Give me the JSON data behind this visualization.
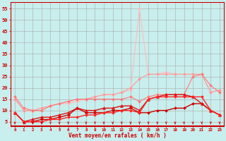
{
  "background_color": "#c8eeed",
  "grid_color": "#aaaaaa",
  "xlabel": "Vent moyen/en rafales ( km/h )",
  "xlabel_color": "#cc0000",
  "tick_color": "#cc0000",
  "x_ticks": [
    0,
    1,
    2,
    3,
    4,
    5,
    6,
    7,
    8,
    9,
    10,
    11,
    12,
    13,
    14,
    15,
    16,
    17,
    18,
    19,
    20,
    21,
    22,
    23
  ],
  "ylim": [
    3,
    58
  ],
  "yticks": [
    5,
    10,
    15,
    20,
    25,
    30,
    35,
    40,
    45,
    50,
    55
  ],
  "xlim": [
    -0.5,
    23.5
  ],
  "series": [
    {
      "x": [
        0,
        1,
        2,
        3,
        4,
        5,
        6,
        7,
        8,
        9,
        10,
        11,
        12,
        13,
        14,
        15,
        16,
        17,
        18,
        19,
        20,
        21,
        22,
        23
      ],
      "y": [
        15,
        10,
        10,
        11,
        12,
        13,
        13,
        14,
        15,
        16,
        17,
        17,
        18,
        19,
        55,
        26,
        26,
        27,
        26,
        26,
        26,
        26,
        18,
        19
      ],
      "color": "#ffbbbb",
      "marker": "D",
      "markersize": 2,
      "linewidth": 0.8,
      "alpha": 1.0
    },
    {
      "x": [
        0,
        1,
        2,
        3,
        4,
        5,
        6,
        7,
        8,
        9,
        10,
        11,
        12,
        13,
        14,
        15,
        16,
        17,
        18,
        19,
        20,
        21,
        22,
        23
      ],
      "y": [
        15,
        10,
        10,
        11,
        12,
        13,
        14,
        15,
        15,
        16,
        17,
        17,
        18,
        20,
        24,
        26,
        26,
        26,
        26,
        26,
        26,
        26,
        18,
        19
      ],
      "color": "#ff9999",
      "marker": "D",
      "markersize": 2,
      "linewidth": 0.8,
      "alpha": 1.0
    },
    {
      "x": [
        0,
        1,
        2,
        3,
        4,
        5,
        6,
        7,
        8,
        9,
        10,
        11,
        12,
        13,
        14,
        15,
        16,
        17,
        18,
        19,
        20,
        21,
        22,
        23
      ],
      "y": [
        16,
        11,
        10,
        10,
        12,
        13,
        14,
        15,
        15,
        15,
        15,
        15,
        15,
        16,
        14,
        16,
        17,
        17,
        17,
        17,
        25,
        26,
        21,
        18
      ],
      "color": "#ff7777",
      "marker": "D",
      "markersize": 2,
      "linewidth": 0.8,
      "alpha": 1.0
    },
    {
      "x": [
        0,
        1,
        2,
        3,
        4,
        5,
        6,
        7,
        8,
        9,
        10,
        11,
        12,
        13,
        14,
        15,
        16,
        17,
        18,
        19,
        20,
        21,
        22,
        23
      ],
      "y": [
        9,
        5,
        5,
        6,
        6,
        7,
        8,
        11,
        9,
        9,
        9,
        10,
        10,
        11,
        9,
        9,
        10,
        10,
        11,
        11,
        13,
        13,
        10,
        8
      ],
      "color": "#cc0000",
      "marker": "D",
      "markersize": 2,
      "linewidth": 1.0,
      "alpha": 1.0
    },
    {
      "x": [
        0,
        1,
        2,
        3,
        4,
        5,
        6,
        7,
        8,
        9,
        10,
        11,
        12,
        13,
        14,
        15,
        16,
        17,
        18,
        19,
        20,
        21,
        22,
        23
      ],
      "y": [
        9,
        5,
        6,
        7,
        7,
        8,
        9,
        11,
        10,
        10,
        11,
        11,
        12,
        12,
        10,
        15,
        16,
        17,
        17,
        17,
        16,
        13,
        10,
        8
      ],
      "color": "#dd1111",
      "marker": "^",
      "markersize": 3,
      "linewidth": 1.0,
      "alpha": 1.0
    },
    {
      "x": [
        0,
        1,
        2,
        3,
        4,
        5,
        6,
        7,
        8,
        9,
        10,
        11,
        12,
        13,
        14,
        15,
        16,
        17,
        18,
        19,
        20,
        21,
        22,
        23
      ],
      "y": [
        9,
        5,
        5,
        5,
        6,
        6,
        7,
        7,
        8,
        8,
        9,
        9,
        10,
        10,
        9,
        15,
        16,
        16,
        16,
        16,
        16,
        16,
        10,
        8
      ],
      "color": "#ff2222",
      "marker": "D",
      "markersize": 2,
      "linewidth": 1.0,
      "alpha": 1.0
    }
  ],
  "spine_color": "#cc0000",
  "arrow_color": "#cc0000"
}
